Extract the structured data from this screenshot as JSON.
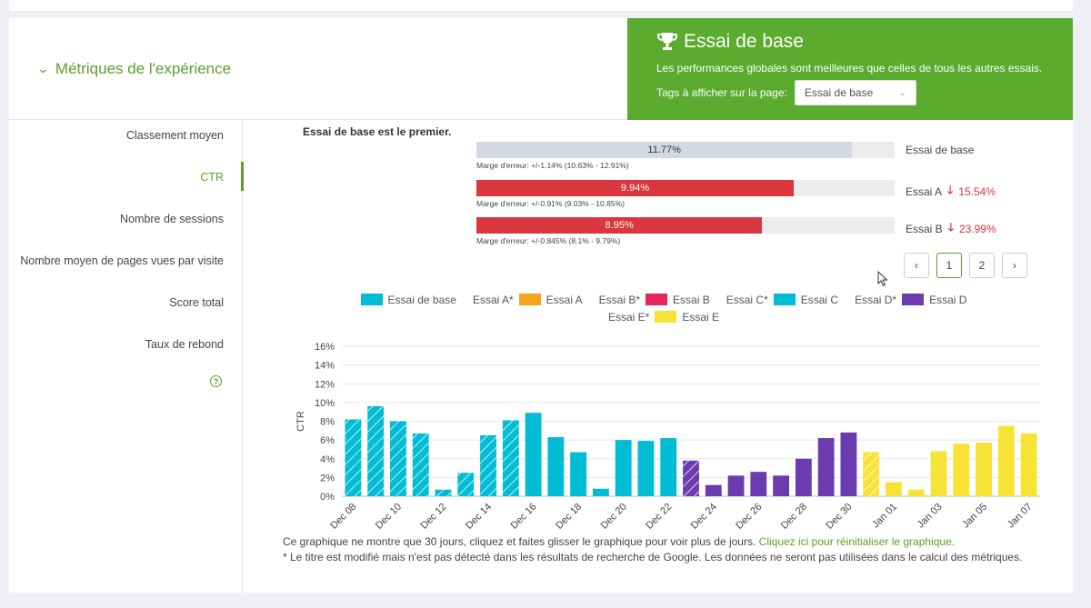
{
  "section": {
    "title": "Métriques de l'expérience"
  },
  "winner_box": {
    "title": "Essai de base",
    "description": "Les performances globales sont meilleures que celles de tous les autres essais.",
    "tags_label": "Tags à afficher sur la page:",
    "tags_selected": "Essai de base"
  },
  "sidebar": {
    "items": [
      {
        "label": "Classement moyen",
        "active": false
      },
      {
        "label": "CTR",
        "active": true
      },
      {
        "label": "Nombre de sessions",
        "active": false
      },
      {
        "label": "Nombre moyen de pages vues par visite",
        "active": false
      },
      {
        "label": "Score total",
        "active": false
      },
      {
        "label": "Taux de rebond",
        "active": false
      }
    ],
    "help": "?"
  },
  "comparison": {
    "winner_text": "Essai de base est le premier.",
    "bars": [
      {
        "value_label": "11.77%",
        "value": 11.77,
        "name": "Essai de base",
        "delta": "",
        "margin": "Marge d'erreur: +/-1.14% (10.63% - 12.91%)",
        "color": "#d5d8e4",
        "text_color": "#333333"
      },
      {
        "value_label": "9.94%",
        "value": 9.94,
        "name": "Essai A",
        "delta": "15.54%",
        "margin": "Marge d'erreur: +/-0.91% (9.03% - 10.85%)",
        "color": "#d9363e",
        "text_color": "#ffffff"
      },
      {
        "value_label": "8.95%",
        "value": 8.95,
        "name": "Essai B",
        "delta": "23.99%",
        "margin": "Marge d'erreur: +/-0.845% (8.1% - 9.79%)",
        "color": "#d9363e",
        "text_color": "#ffffff"
      }
    ],
    "scale_max": 13.1
  },
  "pager": {
    "prev": "‹",
    "pages": [
      "1",
      "2"
    ],
    "active": "1",
    "next": "›"
  },
  "legend": {
    "row1": [
      {
        "prefix": "",
        "name": "Essai de base",
        "color": "#00bcd4"
      },
      {
        "prefix": "Essai A*",
        "name": "Essai A",
        "color": "#f5a31a"
      },
      {
        "prefix": "Essai B*",
        "name": "Essai B",
        "color": "#e8245c"
      },
      {
        "prefix": "Essai C*",
        "name": "Essai C",
        "color": "#00bcd4"
      },
      {
        "prefix": "Essai D*",
        "name": "Essai D",
        "color": "#6a3cb0"
      }
    ],
    "row2": [
      {
        "prefix": "Essai E*",
        "name": "Essai E",
        "color": "#f7e236"
      }
    ]
  },
  "chart_data": {
    "type": "bar",
    "ylabel": "CTR",
    "ylim": [
      0,
      16
    ],
    "y_ticks": [
      "0%",
      "2%",
      "4%",
      "6%",
      "8%",
      "10%",
      "12%",
      "14%",
      "16%"
    ],
    "grid": true,
    "x_tick_labels": [
      "Dec 08",
      "Dec 10",
      "Dec 12",
      "Dec 14",
      "Dec 16",
      "Dec 18",
      "Dec 20",
      "Dec 22",
      "Dec 24",
      "Dec 26",
      "Dec 28",
      "Dec 30",
      "Jan 01",
      "Jan 03",
      "Jan 05",
      "Jan 07"
    ],
    "bars": [
      {
        "x": "Dec 08",
        "value": 8.2,
        "color": "#00bcd4",
        "hatched": true
      },
      {
        "x": "Dec 09",
        "value": 9.6,
        "color": "#00bcd4",
        "hatched": true
      },
      {
        "x": "Dec 10",
        "value": 8.0,
        "color": "#00bcd4",
        "hatched": true
      },
      {
        "x": "Dec 11",
        "value": 6.7,
        "color": "#00bcd4",
        "hatched": true
      },
      {
        "x": "Dec 12",
        "value": 0.7,
        "color": "#00bcd4",
        "hatched": true
      },
      {
        "x": "Dec 13",
        "value": 2.5,
        "color": "#00bcd4",
        "hatched": true
      },
      {
        "x": "Dec 14",
        "value": 6.5,
        "color": "#00bcd4",
        "hatched": true
      },
      {
        "x": "Dec 15",
        "value": 8.1,
        "color": "#00bcd4",
        "hatched": true
      },
      {
        "x": "Dec 16",
        "value": 8.9,
        "color": "#00bcd4",
        "hatched": false
      },
      {
        "x": "Dec 17",
        "value": 6.3,
        "color": "#00bcd4",
        "hatched": false
      },
      {
        "x": "Dec 18",
        "value": 4.7,
        "color": "#00bcd4",
        "hatched": false
      },
      {
        "x": "Dec 19",
        "value": 0.8,
        "color": "#00bcd4",
        "hatched": false
      },
      {
        "x": "Dec 20",
        "value": 6.0,
        "color": "#00bcd4",
        "hatched": false
      },
      {
        "x": "Dec 21",
        "value": 5.9,
        "color": "#00bcd4",
        "hatched": false
      },
      {
        "x": "Dec 22",
        "value": 6.2,
        "color": "#00bcd4",
        "hatched": false
      },
      {
        "x": "Dec 23",
        "value": 3.8,
        "color": "#6a3cb0",
        "hatched": true
      },
      {
        "x": "Dec 24",
        "value": 1.2,
        "color": "#6a3cb0",
        "hatched": false
      },
      {
        "x": "Dec 25",
        "value": 2.2,
        "color": "#6a3cb0",
        "hatched": false
      },
      {
        "x": "Dec 26",
        "value": 2.6,
        "color": "#6a3cb0",
        "hatched": false
      },
      {
        "x": "Dec 27",
        "value": 2.2,
        "color": "#6a3cb0",
        "hatched": false
      },
      {
        "x": "Dec 28",
        "value": 4.0,
        "color": "#6a3cb0",
        "hatched": false
      },
      {
        "x": "Dec 29",
        "value": 6.2,
        "color": "#6a3cb0",
        "hatched": false
      },
      {
        "x": "Dec 30",
        "value": 6.8,
        "color": "#6a3cb0",
        "hatched": false
      },
      {
        "x": "Dec 31",
        "value": 4.7,
        "color": "#f7e236",
        "hatched": true
      },
      {
        "x": "Jan 01",
        "value": 1.5,
        "color": "#f7e236",
        "hatched": false
      },
      {
        "x": "Jan 02",
        "value": 0.7,
        "color": "#f7e236",
        "hatched": false
      },
      {
        "x": "Jan 03",
        "value": 4.8,
        "color": "#f7e236",
        "hatched": false
      },
      {
        "x": "Jan 04",
        "value": 5.6,
        "color": "#f7e236",
        "hatched": false
      },
      {
        "x": "Jan 05",
        "value": 5.7,
        "color": "#f7e236",
        "hatched": false
      },
      {
        "x": "Jan 06",
        "value": 7.5,
        "color": "#f7e236",
        "hatched": false
      },
      {
        "x": "Jan 07",
        "value": 6.7,
        "color": "#f7e236",
        "hatched": false
      }
    ]
  },
  "footnote": {
    "line1": "Ce graphique ne montre que 30 jours, cliquez et faites glisser le graphique pour voir plus de jours.",
    "link": "Cliquez ici pour réinitialiser le graphique.",
    "line2": "* Le titre est modifié mais n'est pas détecté dans les résultats de recherche de Google. Les données ne seront pas utilisées dans le calcul des métriques."
  }
}
